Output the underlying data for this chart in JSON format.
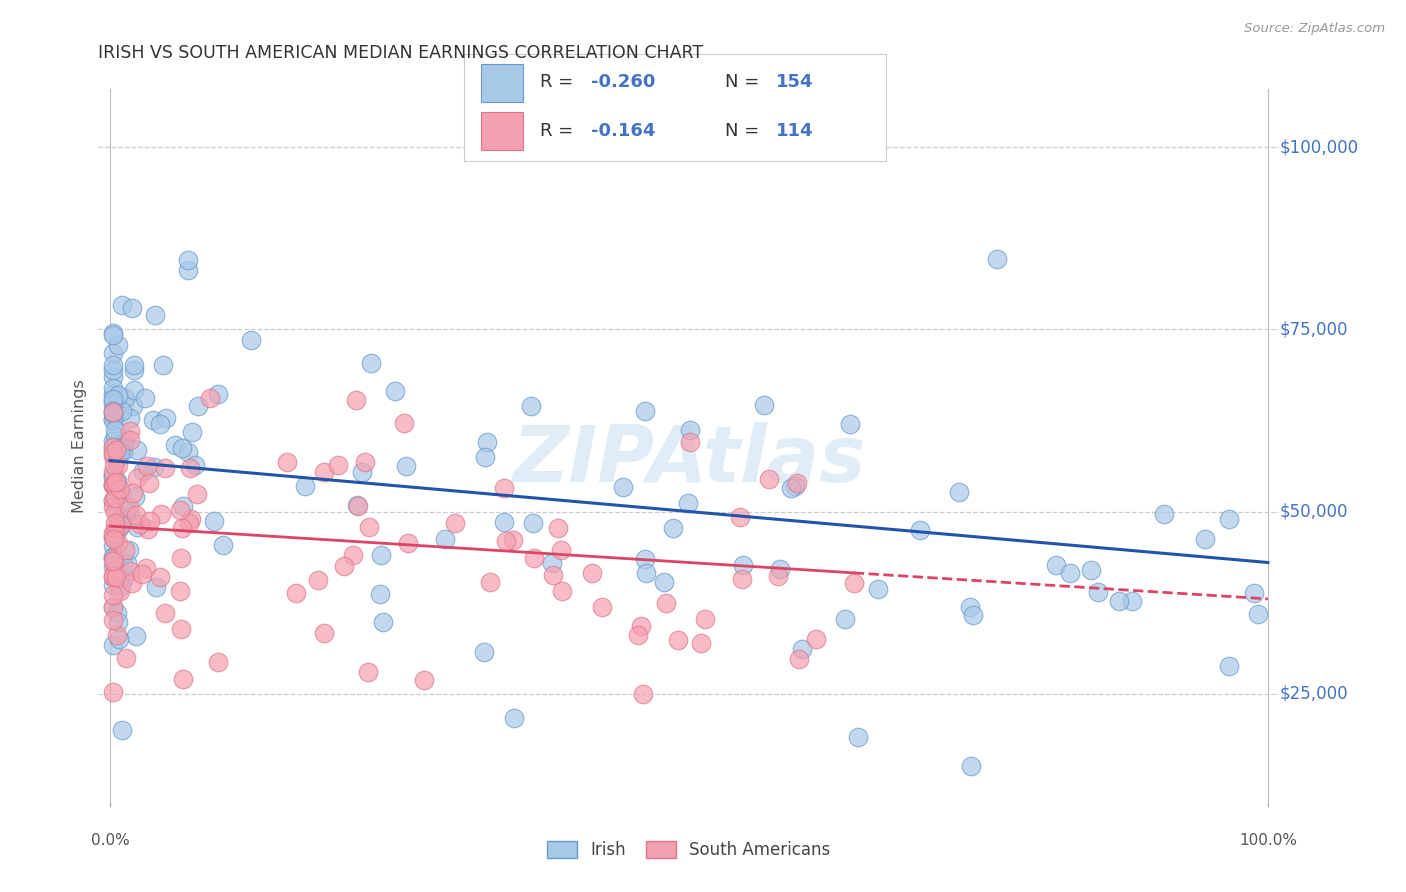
{
  "title": "IRISH VS SOUTH AMERICAN MEDIAN EARNINGS CORRELATION CHART",
  "source": "Source: ZipAtlas.com",
  "ylabel": "Median Earnings",
  "watermark": "ZIPAtlas",
  "irish_color": "#a8c8e8",
  "irish_edge_color": "#6699cc",
  "irish_line_color": "#2255aa",
  "sa_color": "#f4a0b0",
  "sa_edge_color": "#dd7788",
  "sa_line_color": "#dd4466",
  "background_color": "#ffffff",
  "grid_color": "#cccccc",
  "title_color": "#333333",
  "ytick_color": "#4472c4",
  "irish_R": -0.26,
  "irish_N": 154,
  "sa_R": -0.164,
  "sa_N": 114,
  "ymin": 10000,
  "ymax": 108000,
  "xmin": -1,
  "xmax": 101,
  "yticks": [
    25000,
    50000,
    75000,
    100000
  ],
  "ytick_labels": [
    "$25,000",
    "$50,000",
    "$75,000",
    "$100,000"
  ]
}
